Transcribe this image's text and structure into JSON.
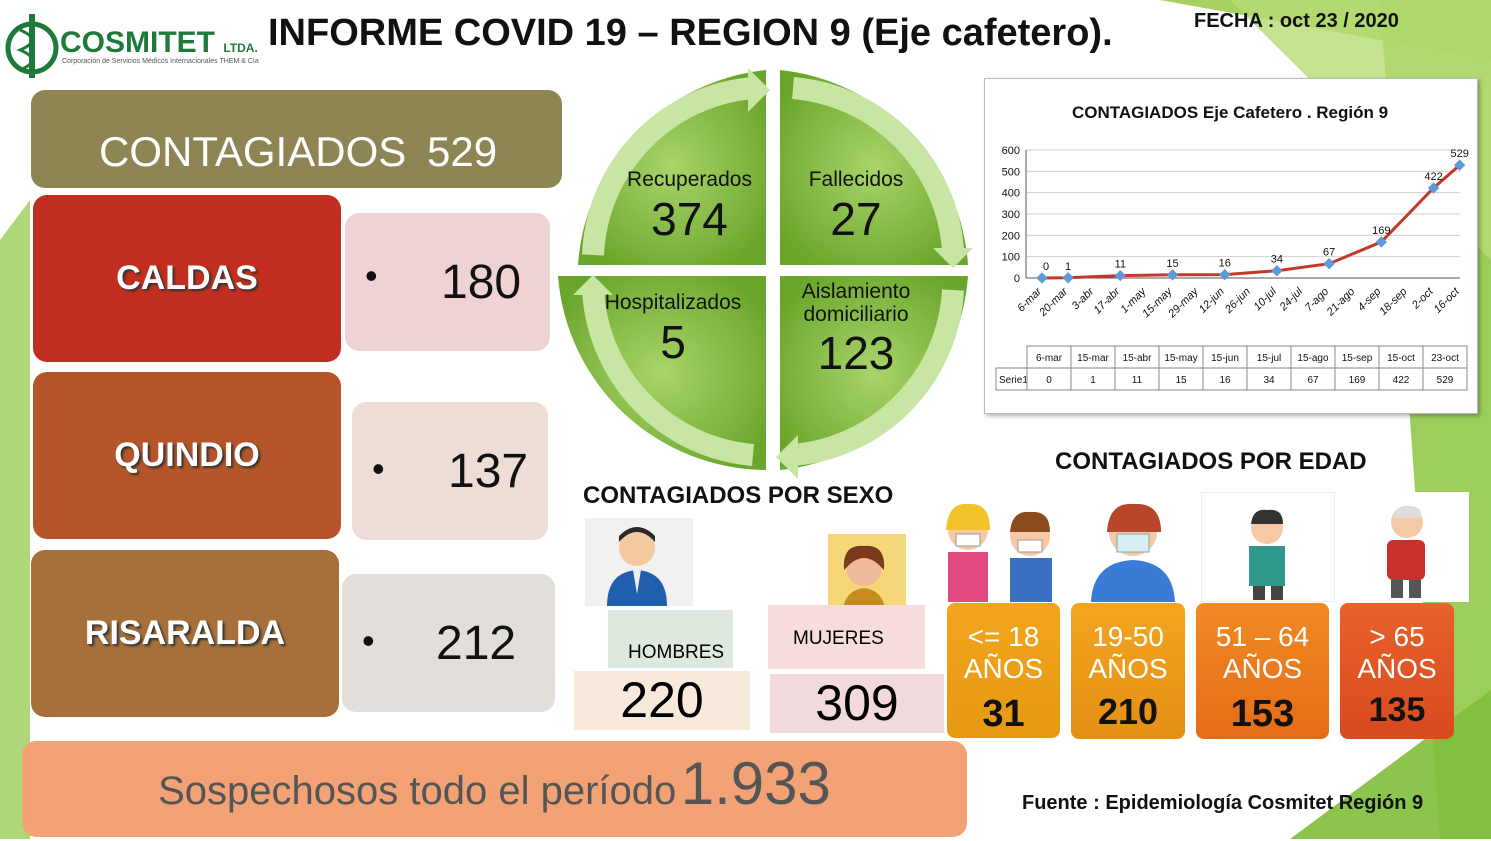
{
  "logo": {
    "name": "COSMITET",
    "suffix": "LTDA.",
    "subtitle": "Corporación de Servicios Médicos Internacionales THEM & Cía"
  },
  "title": "INFORME COVID 19 – REGION 9 (Eje cafetero).",
  "date": "FECHA : oct 23  / 2020",
  "contagiados": {
    "label": "CONTAGIADOS",
    "value": "529"
  },
  "departments": [
    {
      "name": "CALDAS",
      "value": "180",
      "color": "#c12e1f",
      "valbg": "#efd3d3"
    },
    {
      "name": "QUINDIO",
      "value": "137",
      "color": "#b5562a",
      "valbg": "#eeddd7"
    },
    {
      "name": "RISARALDA",
      "value": "212",
      "color": "#a5703a",
      "valbg": "#e2deda"
    }
  ],
  "bullet": "•",
  "cycle": {
    "recuperados": {
      "label": "Recuperados",
      "value": "374"
    },
    "fallecidos": {
      "label": "Fallecidos",
      "value": "27"
    },
    "hospitalizados": {
      "label": "Hospitalizados",
      "value": "5"
    },
    "aislamiento": {
      "label": "Aislamiento domiciliario",
      "value": "123"
    }
  },
  "chart_data": {
    "type": "line",
    "title": "CONTAGIADOS Eje Cafetero . Región 9",
    "x_ticks": [
      "6-mar",
      "20-mar",
      "3-abr",
      "17-abr",
      "1-may",
      "15-may",
      "29-may",
      "12-jun",
      "26-jun",
      "10-jul",
      "24-jul",
      "7-ago",
      "21-ago",
      "4-sep",
      "18-sep",
      "2-oct",
      "16-oct"
    ],
    "series": [
      {
        "name": "Serie1",
        "categories": [
          "6-mar",
          "15-mar",
          "15-abr",
          "15-may",
          "15-jun",
          "15-jul",
          "15-ago",
          "15-sep",
          "15-oct",
          "23-oct"
        ],
        "values": [
          0,
          1,
          11,
          15,
          16,
          34,
          67,
          169,
          422,
          529
        ]
      }
    ],
    "table_header": [
      "6-mar",
      "15-mar",
      "15-abr",
      "15-may",
      "15-jun",
      "15-jul",
      "15-ago",
      "15-sep",
      "15-oct",
      "23-oct"
    ],
    "ylim": [
      0,
      600
    ],
    "y_ticks": [
      0,
      100,
      200,
      300,
      400,
      500,
      600
    ],
    "grid": true,
    "color": "#c0392b"
  },
  "sexo": {
    "title": "CONTAGIADOS POR SEXO",
    "hombres": {
      "label": "HOMBRES",
      "value": "220"
    },
    "mujeres": {
      "label": "MUJERES",
      "value": "309"
    }
  },
  "edad": {
    "title": "CONTAGIADOS POR EDAD",
    "groups": [
      {
        "label": "<= 18 AÑOS",
        "value": "31",
        "color": "#f2a41c"
      },
      {
        "label": "19-50 AÑOS",
        "value": "210",
        "color": "#f09a1a"
      },
      {
        "label": "51 – 64 AÑOS",
        "value": "153",
        "color": "#ee7d1e"
      },
      {
        "label": "> 65 AÑOS",
        "value": "135",
        "color": "#e5572a"
      }
    ]
  },
  "sospechosos": {
    "label": "Sospechosos todo el período",
    "value": "1.933"
  },
  "fuente": "Fuente : Epidemiología Cosmitet  Región 9"
}
